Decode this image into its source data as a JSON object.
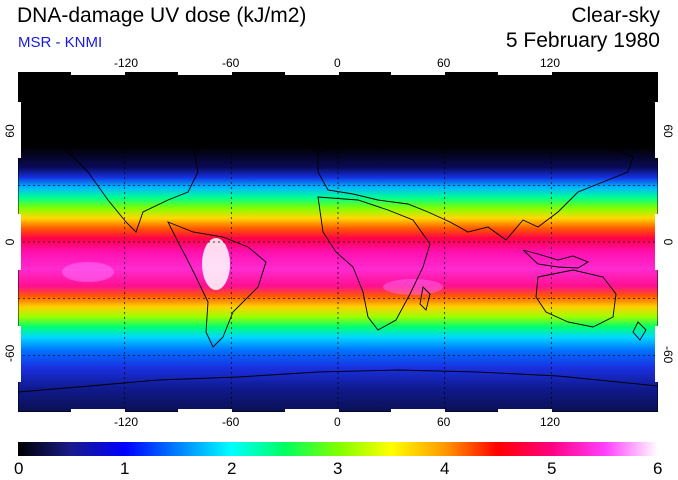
{
  "header": {
    "title": "DNA-damage UV dose (kJ/m2)",
    "subtitle": "MSR - KNMI",
    "mode": "Clear-sky",
    "date": "5 February 1980"
  },
  "map": {
    "lon_ticks_top": [
      "-120",
      "-60",
      "0",
      "60",
      "120"
    ],
    "lon_ticks_bottom": [
      "-120",
      "-60",
      "0",
      "60",
      "120"
    ],
    "lat_ticks_left": [
      "60",
      "0",
      "-60"
    ],
    "lat_ticks_right": [
      "60",
      "0",
      "-60"
    ],
    "lon_range": [
      -180,
      180
    ],
    "lat_range": [
      -90,
      90
    ],
    "gridline_lons": [
      -120,
      -60,
      0,
      60,
      120
    ],
    "gridline_lats": [
      60,
      30,
      0,
      -30,
      -60
    ]
  },
  "colorbar": {
    "ticks": [
      "0",
      "1",
      "2",
      "3",
      "4",
      "5",
      "6"
    ],
    "range": [
      0,
      6
    ],
    "colors": [
      "#000000",
      "#1a1a8c",
      "#0000ff",
      "#0080ff",
      "#00ffff",
      "#00ff60",
      "#80ff00",
      "#ffff00",
      "#ff9900",
      "#ff0000",
      "#ff0080",
      "#ff40ff",
      "#ffffff"
    ]
  }
}
